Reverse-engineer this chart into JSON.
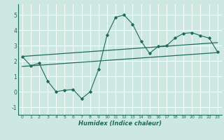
{
  "xlabel": "Humidex (Indice chaleur)",
  "xlim": [
    -0.5,
    23.5
  ],
  "ylim": [
    -1.5,
    5.7
  ],
  "yticks": [
    -1,
    0,
    1,
    2,
    3,
    4,
    5
  ],
  "xticks": [
    0,
    1,
    2,
    3,
    4,
    5,
    6,
    7,
    8,
    9,
    10,
    11,
    12,
    13,
    14,
    15,
    16,
    17,
    18,
    19,
    20,
    21,
    22,
    23
  ],
  "bg_color": "#cce8e0",
  "line_color": "#1e6b5a",
  "grid_color": "#ffffff",
  "data_x": [
    0,
    1,
    2,
    3,
    4,
    5,
    6,
    7,
    8,
    9,
    10,
    11,
    12,
    13,
    14,
    15,
    16,
    17,
    18,
    19,
    20,
    21,
    22,
    23
  ],
  "data_y": [
    2.3,
    1.7,
    1.85,
    0.7,
    0.0,
    0.1,
    0.15,
    -0.45,
    0.0,
    1.45,
    3.7,
    4.85,
    5.0,
    4.4,
    3.3,
    2.5,
    2.95,
    3.0,
    3.5,
    3.8,
    3.85,
    3.65,
    3.5,
    2.6
  ],
  "upper_trend_x": [
    0,
    23
  ],
  "upper_trend_y": [
    2.3,
    3.2
  ],
  "lower_trend_x": [
    0,
    23
  ],
  "lower_trend_y": [
    1.65,
    2.55
  ]
}
